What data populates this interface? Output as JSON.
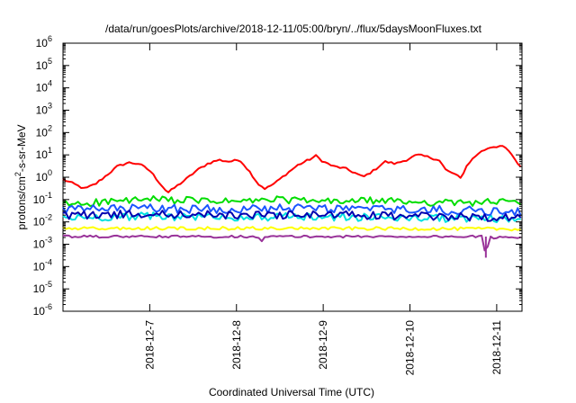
{
  "chart_data": {
    "type": "line",
    "title": "/data/run/goesPlots/archive/2018-12-11/05:00/bryn/../flux/5daysMoonFluxes.txt",
    "xlabel": "Coordinated Universal Time (UTC)",
    "ylabel": {
      "pre": "protons/cm",
      "sup": "2",
      "post": "-s-sr-MeV"
    },
    "yscale": "log",
    "ylim": [
      1e-06,
      1000000.0
    ],
    "xlim": [
      "2018-12-06T00:00",
      "2018-12-11T07:00"
    ],
    "yticks": [
      {
        "v": 1e-06,
        "base": "10",
        "exp": "-6"
      },
      {
        "v": 1e-05,
        "base": "10",
        "exp": "-5"
      },
      {
        "v": 0.0001,
        "base": "10",
        "exp": "-4"
      },
      {
        "v": 0.001,
        "base": "10",
        "exp": "-3"
      },
      {
        "v": 0.01,
        "base": "10",
        "exp": "-2"
      },
      {
        "v": 0.1,
        "base": "10",
        "exp": "-1"
      },
      {
        "v": 1.0,
        "base": "10",
        "exp": "0"
      },
      {
        "v": 10.0,
        "base": "10",
        "exp": "1"
      },
      {
        "v": 100.0,
        "base": "10",
        "exp": "2"
      },
      {
        "v": 1000.0,
        "base": "10",
        "exp": "3"
      },
      {
        "v": 10000.0,
        "base": "10",
        "exp": "4"
      },
      {
        "v": 100000.0,
        "base": "10",
        "exp": "5"
      },
      {
        "v": 1000000.0,
        "base": "10",
        "exp": "6"
      }
    ],
    "xticks": [
      {
        "t": "2018-12-07T00:00",
        "label": "2018-12-7"
      },
      {
        "t": "2018-12-08T00:00",
        "label": "2018-12-8"
      },
      {
        "t": "2018-12-09T00:00",
        "label": "2018-12-9"
      },
      {
        "t": "2018-12-10T00:00",
        "label": "2018-12-10"
      },
      {
        "t": "2018-12-11T00:00",
        "label": "2018-12-11"
      }
    ],
    "grid": false,
    "legend": false,
    "series": [
      {
        "color": "#ff0000",
        "noise": 0.05,
        "points": [
          [
            "2018-12-06T00:00",
            0.8
          ],
          [
            "2018-12-06T03:00",
            0.5
          ],
          [
            "2018-12-06T06:00",
            0.3
          ],
          [
            "2018-12-06T09:00",
            0.5
          ],
          [
            "2018-12-06T12:00",
            1.2
          ],
          [
            "2018-12-06T15:00",
            3
          ],
          [
            "2018-12-06T18:00",
            4.5
          ],
          [
            "2018-12-06T21:00",
            4
          ],
          [
            "2018-12-07T00:00",
            2
          ],
          [
            "2018-12-07T03:00",
            0.5
          ],
          [
            "2018-12-07T05:00",
            0.2
          ],
          [
            "2018-12-07T07:00",
            0.35
          ],
          [
            "2018-12-07T10:00",
            0.8
          ],
          [
            "2018-12-07T13:00",
            2
          ],
          [
            "2018-12-07T16:00",
            4
          ],
          [
            "2018-12-07T19:00",
            6
          ],
          [
            "2018-12-07T22:00",
            5
          ],
          [
            "2018-12-08T01:00",
            6
          ],
          [
            "2018-12-08T04:00",
            1.5
          ],
          [
            "2018-12-08T06:00",
            0.5
          ],
          [
            "2018-12-08T08:00",
            0.3
          ],
          [
            "2018-12-08T11:00",
            0.6
          ],
          [
            "2018-12-08T14:00",
            1.5
          ],
          [
            "2018-12-08T17:00",
            3.5
          ],
          [
            "2018-12-08T20:00",
            6
          ],
          [
            "2018-12-08T22:00",
            9
          ],
          [
            "2018-12-09T00:00",
            5
          ],
          [
            "2018-12-09T03:00",
            3
          ],
          [
            "2018-12-09T06:00",
            2.5
          ],
          [
            "2018-12-09T09:00",
            1.5
          ],
          [
            "2018-12-09T11:00",
            1
          ],
          [
            "2018-12-09T14:00",
            2
          ],
          [
            "2018-12-09T17:00",
            5
          ],
          [
            "2018-12-09T20:00",
            4
          ],
          [
            "2018-12-09T23:00",
            6
          ],
          [
            "2018-12-10T02:00",
            10
          ],
          [
            "2018-12-10T05:00",
            8
          ],
          [
            "2018-12-10T08:00",
            6
          ],
          [
            "2018-12-10T10:00",
            2
          ],
          [
            "2018-12-10T12:00",
            1.5
          ],
          [
            "2018-12-10T14:00",
            0.9
          ],
          [
            "2018-12-10T16:00",
            4
          ],
          [
            "2018-12-10T19:00",
            12
          ],
          [
            "2018-12-10T22:00",
            22
          ],
          [
            "2018-12-11T01:00",
            25
          ],
          [
            "2018-12-11T03:00",
            18
          ],
          [
            "2018-12-11T05:00",
            6
          ],
          [
            "2018-12-11T07:00",
            2.5
          ]
        ]
      },
      {
        "color": "#00dd00",
        "noise": 0.16,
        "points": [
          [
            "2018-12-06T00:00",
            0.06
          ],
          [
            "2018-12-06T12:00",
            0.08
          ],
          [
            "2018-12-07T00:00",
            0.1
          ],
          [
            "2018-12-07T12:00",
            0.09
          ],
          [
            "2018-12-08T00:00",
            0.08
          ],
          [
            "2018-12-08T12:00",
            0.1
          ],
          [
            "2018-12-09T00:00",
            0.08
          ],
          [
            "2018-12-09T12:00",
            0.09
          ],
          [
            "2018-12-10T00:00",
            0.08
          ],
          [
            "2018-12-10T12:00",
            0.07
          ],
          [
            "2018-12-11T00:00",
            0.08
          ],
          [
            "2018-12-11T07:00",
            0.07
          ]
        ]
      },
      {
        "color": "#00e0e0",
        "noise": 0.18,
        "points": [
          [
            "2018-12-06T00:00",
            0.015
          ],
          [
            "2018-12-07T00:00",
            0.018
          ],
          [
            "2018-12-08T00:00",
            0.016
          ],
          [
            "2018-12-09T00:00",
            0.017
          ],
          [
            "2018-12-10T00:00",
            0.015
          ],
          [
            "2018-12-11T00:00",
            0.014
          ],
          [
            "2018-12-11T07:00",
            0.013
          ]
        ]
      },
      {
        "color": "#1a55ff",
        "noise": 0.2,
        "points": [
          [
            "2018-12-06T00:00",
            0.035
          ],
          [
            "2018-12-07T00:00",
            0.04
          ],
          [
            "2018-12-08T00:00",
            0.037
          ],
          [
            "2018-12-09T00:00",
            0.04
          ],
          [
            "2018-12-10T00:00",
            0.035
          ],
          [
            "2018-12-11T00:00",
            0.03
          ],
          [
            "2018-12-11T07:00",
            0.028
          ]
        ]
      },
      {
        "color": "#0000b0",
        "noise": 0.18,
        "points": [
          [
            "2018-12-06T00:00",
            0.02
          ],
          [
            "2018-12-07T00:00",
            0.022
          ],
          [
            "2018-12-08T00:00",
            0.02
          ],
          [
            "2018-12-09T00:00",
            0.021
          ],
          [
            "2018-12-10T00:00",
            0.018
          ],
          [
            "2018-12-11T00:00",
            0.016
          ],
          [
            "2018-12-11T07:00",
            0.015
          ]
        ]
      },
      {
        "color": "#ffff00",
        "noise": 0.07,
        "points": [
          [
            "2018-12-06T00:00",
            0.005
          ],
          [
            "2018-12-08T00:00",
            0.0052
          ],
          [
            "2018-12-10T00:00",
            0.005
          ],
          [
            "2018-12-11T07:00",
            0.0048
          ]
        ]
      },
      {
        "color": "#993399",
        "noise": 0.05,
        "points": [
          [
            "2018-12-06T00:00",
            0.0022
          ],
          [
            "2018-12-08T00:00",
            0.0022
          ],
          [
            "2018-12-08T06:00",
            0.0022
          ],
          [
            "2018-12-08T07:00",
            0.0015
          ],
          [
            "2018-12-08T08:00",
            0.0022
          ],
          [
            "2018-12-10T00:00",
            0.0022
          ],
          [
            "2018-12-10T20:00",
            0.0022
          ],
          [
            "2018-12-10T21:00",
            0.00025
          ],
          [
            "2018-12-10T22:00",
            0.002
          ],
          [
            "2018-12-11T07:00",
            0.0021
          ]
        ]
      }
    ]
  }
}
